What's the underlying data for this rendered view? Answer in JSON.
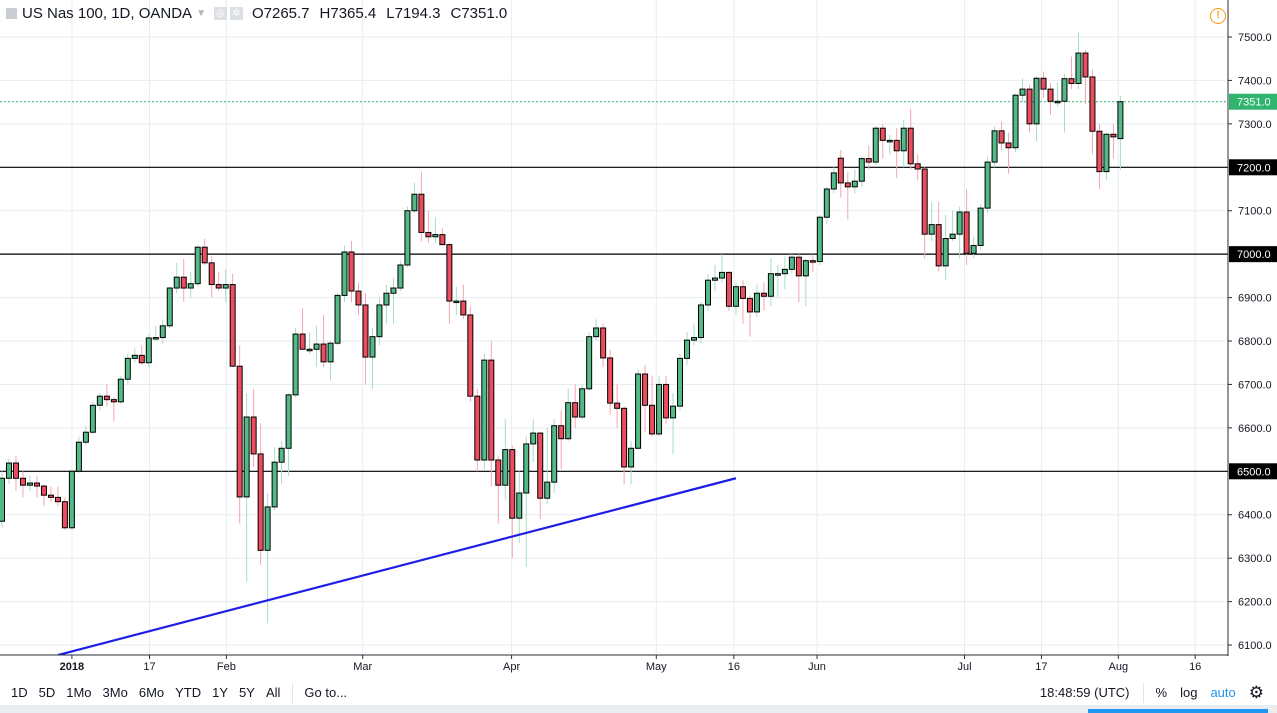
{
  "header": {
    "symbol": "US Nas 100, 1D, OANDA",
    "open_label": "O",
    "open": "7265.7",
    "high_label": "H",
    "high": "7365.4",
    "low_label": "L",
    "low": "7194.3",
    "close_label": "C",
    "close": "7351.0"
  },
  "toolbar": {
    "ranges": [
      "1D",
      "5D",
      "1Mo",
      "3Mo",
      "6Mo",
      "YTD",
      "1Y",
      "5Y",
      "All"
    ],
    "goto": "Go to...",
    "clock": "18:48:59 (UTC)",
    "percent": "%",
    "log": "log",
    "auto": "auto"
  },
  "colors": {
    "up": "#53b987",
    "down": "#eb4d5c",
    "up_wick": "#a9dcc3",
    "down_wick": "#f5a6ae",
    "trendline": "#1e1ee6",
    "last_price": "#2fb56e",
    "grid": "#e6eef3"
  },
  "chart_data": {
    "type": "candlestick",
    "title": "US Nas 100, 1D, OANDA",
    "ylim": [
      6080,
      7560
    ],
    "y_ticks": [
      6100,
      6200,
      6300,
      6400,
      6500,
      6600,
      6700,
      6800,
      6900,
      7000,
      7100,
      7200,
      7300,
      7400,
      7500
    ],
    "x_ticks": [
      {
        "label": "2018",
        "index": 11,
        "bold": true
      },
      {
        "label": "17",
        "index": 22.1
      },
      {
        "label": "Feb",
        "index": 33.1
      },
      {
        "label": "Mar",
        "index": 52.6
      },
      {
        "label": "Apr",
        "index": 73.9
      },
      {
        "label": "May",
        "index": 94.6
      },
      {
        "label": "16",
        "index": 105.7
      },
      {
        "label": "Jun",
        "index": 117.6
      },
      {
        "label": "Jul",
        "index": 138.7
      },
      {
        "label": "17",
        "index": 149.7
      },
      {
        "label": "Aug",
        "index": 160.7
      },
      {
        "label": "16",
        "index": 171.7
      }
    ],
    "horizontal_lines": [
      {
        "price": 7200,
        "label": "7200.0"
      },
      {
        "price": 7000,
        "label": "7000.0"
      },
      {
        "price": 6500,
        "label": "6500.0"
      }
    ],
    "last_price": {
      "price": 7351,
      "label": "7351.0"
    },
    "trendline": {
      "from": [
        9,
        6077
      ],
      "to": [
        106,
        6484
      ]
    },
    "candles": [
      [
        6385,
        6500,
        6370,
        6484
      ],
      [
        6484,
        6530,
        6470,
        6519
      ],
      [
        6519,
        6535,
        6455,
        6484
      ],
      [
        6484,
        6500,
        6440,
        6468
      ],
      [
        6468,
        6490,
        6455,
        6473
      ],
      [
        6473,
        6490,
        6440,
        6466
      ],
      [
        6466,
        6470,
        6420,
        6445
      ],
      [
        6445,
        6465,
        6430,
        6440
      ],
      [
        6440,
        6465,
        6420,
        6430
      ],
      [
        6430,
        6440,
        6365,
        6370
      ],
      [
        6370,
        6505,
        6365,
        6500
      ],
      [
        6500,
        6580,
        6495,
        6567
      ],
      [
        6567,
        6605,
        6560,
        6590
      ],
      [
        6590,
        6660,
        6585,
        6652
      ],
      [
        6652,
        6680,
        6640,
        6673
      ],
      [
        6673,
        6700,
        6650,
        6665
      ],
      [
        6665,
        6670,
        6615,
        6660
      ],
      [
        6660,
        6720,
        6655,
        6712
      ],
      [
        6712,
        6770,
        6700,
        6760
      ],
      [
        6760,
        6785,
        6750,
        6767
      ],
      [
        6767,
        6790,
        6745,
        6750
      ],
      [
        6750,
        6815,
        6740,
        6807
      ],
      [
        6807,
        6835,
        6800,
        6808
      ],
      [
        6808,
        6850,
        6795,
        6835
      ],
      [
        6835,
        6925,
        6830,
        6922
      ],
      [
        6922,
        6980,
        6910,
        6947
      ],
      [
        6947,
        6990,
        6890,
        6922
      ],
      [
        6922,
        6960,
        6900,
        6932
      ],
      [
        6932,
        7020,
        6925,
        7016
      ],
      [
        7016,
        7035,
        6975,
        6980
      ],
      [
        6980,
        6995,
        6900,
        6930
      ],
      [
        6930,
        6960,
        6915,
        6922
      ],
      [
        6922,
        6965,
        6890,
        6930
      ],
      [
        6930,
        6955,
        6740,
        6742
      ],
      [
        6742,
        6790,
        6380,
        6441
      ],
      [
        6441,
        6680,
        6245,
        6625
      ],
      [
        6625,
        6690,
        6510,
        6540
      ],
      [
        6540,
        6610,
        6285,
        6318
      ],
      [
        6318,
        6450,
        6150,
        6418
      ],
      [
        6418,
        6555,
        6410,
        6521
      ],
      [
        6521,
        6570,
        6470,
        6553
      ],
      [
        6553,
        6680,
        6490,
        6676
      ],
      [
        6676,
        6830,
        6670,
        6816
      ],
      [
        6816,
        6875,
        6790,
        6781
      ],
      [
        6781,
        6820,
        6770,
        6781
      ],
      [
        6781,
        6835,
        6740,
        6793
      ],
      [
        6793,
        6860,
        6740,
        6752
      ],
      [
        6752,
        6800,
        6710,
        6795
      ],
      [
        6795,
        6910,
        6790,
        6905
      ],
      [
        6905,
        7020,
        6890,
        7005
      ],
      [
        7005,
        7030,
        6890,
        6915
      ],
      [
        6915,
        6935,
        6860,
        6883
      ],
      [
        6883,
        6910,
        6700,
        6763
      ],
      [
        6763,
        6830,
        6690,
        6810
      ],
      [
        6810,
        6900,
        6790,
        6883
      ],
      [
        6883,
        6930,
        6840,
        6910
      ],
      [
        6910,
        6945,
        6840,
        6922
      ],
      [
        6922,
        6985,
        6915,
        6975
      ],
      [
        6975,
        7110,
        6970,
        7100
      ],
      [
        7100,
        7165,
        7095,
        7138
      ],
      [
        7138,
        7190,
        7030,
        7050
      ],
      [
        7050,
        7100,
        7025,
        7040
      ],
      [
        7040,
        7085,
        7025,
        7045
      ],
      [
        7045,
        7060,
        7020,
        7022
      ],
      [
        7022,
        7025,
        6840,
        6892
      ],
      [
        6892,
        6925,
        6860,
        6892
      ],
      [
        6892,
        6930,
        6850,
        6860
      ],
      [
        6860,
        6880,
        6660,
        6673
      ],
      [
        6673,
        6690,
        6500,
        6526
      ],
      [
        6526,
        6770,
        6505,
        6756
      ],
      [
        6756,
        6800,
        6465,
        6526
      ],
      [
        6526,
        6535,
        6380,
        6468
      ],
      [
        6468,
        6620,
        6435,
        6550
      ],
      [
        6550,
        6560,
        6300,
        6392
      ],
      [
        6392,
        6500,
        6335,
        6450
      ],
      [
        6450,
        6580,
        6280,
        6563
      ],
      [
        6563,
        6620,
        6520,
        6588
      ],
      [
        6588,
        6590,
        6390,
        6438
      ],
      [
        6438,
        6600,
        6425,
        6475
      ],
      [
        6475,
        6620,
        6450,
        6605
      ],
      [
        6605,
        6640,
        6505,
        6575
      ],
      [
        6575,
        6690,
        6570,
        6658
      ],
      [
        6658,
        6700,
        6600,
        6625
      ],
      [
        6625,
        6700,
        6620,
        6690
      ],
      [
        6690,
        6820,
        6685,
        6810
      ],
      [
        6810,
        6850,
        6800,
        6830
      ],
      [
        6830,
        6840,
        6740,
        6761
      ],
      [
        6761,
        6780,
        6630,
        6657
      ],
      [
        6657,
        6700,
        6600,
        6645
      ],
      [
        6645,
        6650,
        6470,
        6510
      ],
      [
        6510,
        6570,
        6470,
        6553
      ],
      [
        6553,
        6735,
        6550,
        6724
      ],
      [
        6724,
        6745,
        6590,
        6652
      ],
      [
        6652,
        6720,
        6580,
        6586
      ],
      [
        6586,
        6720,
        6580,
        6700
      ],
      [
        6700,
        6720,
        6610,
        6623
      ],
      [
        6623,
        6680,
        6540,
        6650
      ],
      [
        6650,
        6770,
        6640,
        6760
      ],
      [
        6760,
        6820,
        6745,
        6802
      ],
      [
        6802,
        6840,
        6790,
        6808
      ],
      [
        6808,
        6890,
        6795,
        6883
      ],
      [
        6883,
        6955,
        6870,
        6940
      ],
      [
        6940,
        6975,
        6915,
        6945
      ],
      [
        6945,
        7000,
        6935,
        6958
      ],
      [
        6958,
        6960,
        6870,
        6880
      ],
      [
        6880,
        6935,
        6860,
        6925
      ],
      [
        6925,
        6940,
        6840,
        6898
      ],
      [
        6898,
        6905,
        6810,
        6867
      ],
      [
        6867,
        6930,
        6855,
        6910
      ],
      [
        6910,
        6935,
        6870,
        6903
      ],
      [
        6903,
        6990,
        6880,
        6955
      ],
      [
        6955,
        6975,
        6900,
        6955
      ],
      [
        6955,
        6995,
        6920,
        6965
      ],
      [
        6965,
        7000,
        6955,
        6993
      ],
      [
        6993,
        7000,
        6890,
        6950
      ],
      [
        6950,
        6990,
        6880,
        6985
      ],
      [
        6985,
        7000,
        6960,
        6983
      ],
      [
        6983,
        7090,
        6975,
        7085
      ],
      [
        7085,
        7155,
        7070,
        7150
      ],
      [
        7150,
        7200,
        7140,
        7187
      ],
      [
        7221,
        7240,
        7130,
        7164
      ],
      [
        7164,
        7190,
        7080,
        7155
      ],
      [
        7155,
        7195,
        7140,
        7168
      ],
      [
        7168,
        7225,
        7155,
        7220
      ],
      [
        7220,
        7250,
        7195,
        7212
      ],
      [
        7212,
        7295,
        7205,
        7290
      ],
      [
        7290,
        7300,
        7220,
        7262
      ],
      [
        7262,
        7275,
        7230,
        7262
      ],
      [
        7262,
        7290,
        7175,
        7238
      ],
      [
        7238,
        7310,
        7200,
        7290
      ],
      [
        7290,
        7335,
        7195,
        7208
      ],
      [
        7208,
        7230,
        7170,
        7196
      ],
      [
        7196,
        7200,
        6990,
        7046
      ],
      [
        7046,
        7120,
        7030,
        7068
      ],
      [
        7068,
        7120,
        6960,
        6973
      ],
      [
        6973,
        7090,
        6940,
        7036
      ],
      [
        7036,
        7100,
        7030,
        7046
      ],
      [
        7046,
        7110,
        6990,
        7097
      ],
      [
        7097,
        7150,
        6975,
        7002
      ],
      [
        7002,
        7040,
        6990,
        7020
      ],
      [
        7020,
        7115,
        7010,
        7106
      ],
      [
        7106,
        7225,
        7095,
        7212
      ],
      [
        7212,
        7295,
        7200,
        7284
      ],
      [
        7284,
        7305,
        7240,
        7256
      ],
      [
        7256,
        7280,
        7185,
        7245
      ],
      [
        7245,
        7370,
        7235,
        7366
      ],
      [
        7366,
        7405,
        7350,
        7380
      ],
      [
        7380,
        7390,
        7280,
        7300
      ],
      [
        7300,
        7410,
        7260,
        7405
      ],
      [
        7405,
        7420,
        7360,
        7380
      ],
      [
        7380,
        7395,
        7320,
        7352
      ],
      [
        7352,
        7395,
        7340,
        7352
      ],
      [
        7352,
        7415,
        7280,
        7404
      ],
      [
        7404,
        7455,
        7380,
        7393
      ],
      [
        7393,
        7510,
        7380,
        7463
      ],
      [
        7463,
        7470,
        7345,
        7408
      ],
      [
        7408,
        7425,
        7230,
        7283
      ],
      [
        7283,
        7300,
        7150,
        7190
      ],
      [
        7190,
        7280,
        7170,
        7276
      ],
      [
        7276,
        7300,
        7220,
        7270
      ],
      [
        7266,
        7365,
        7194,
        7351
      ]
    ]
  }
}
